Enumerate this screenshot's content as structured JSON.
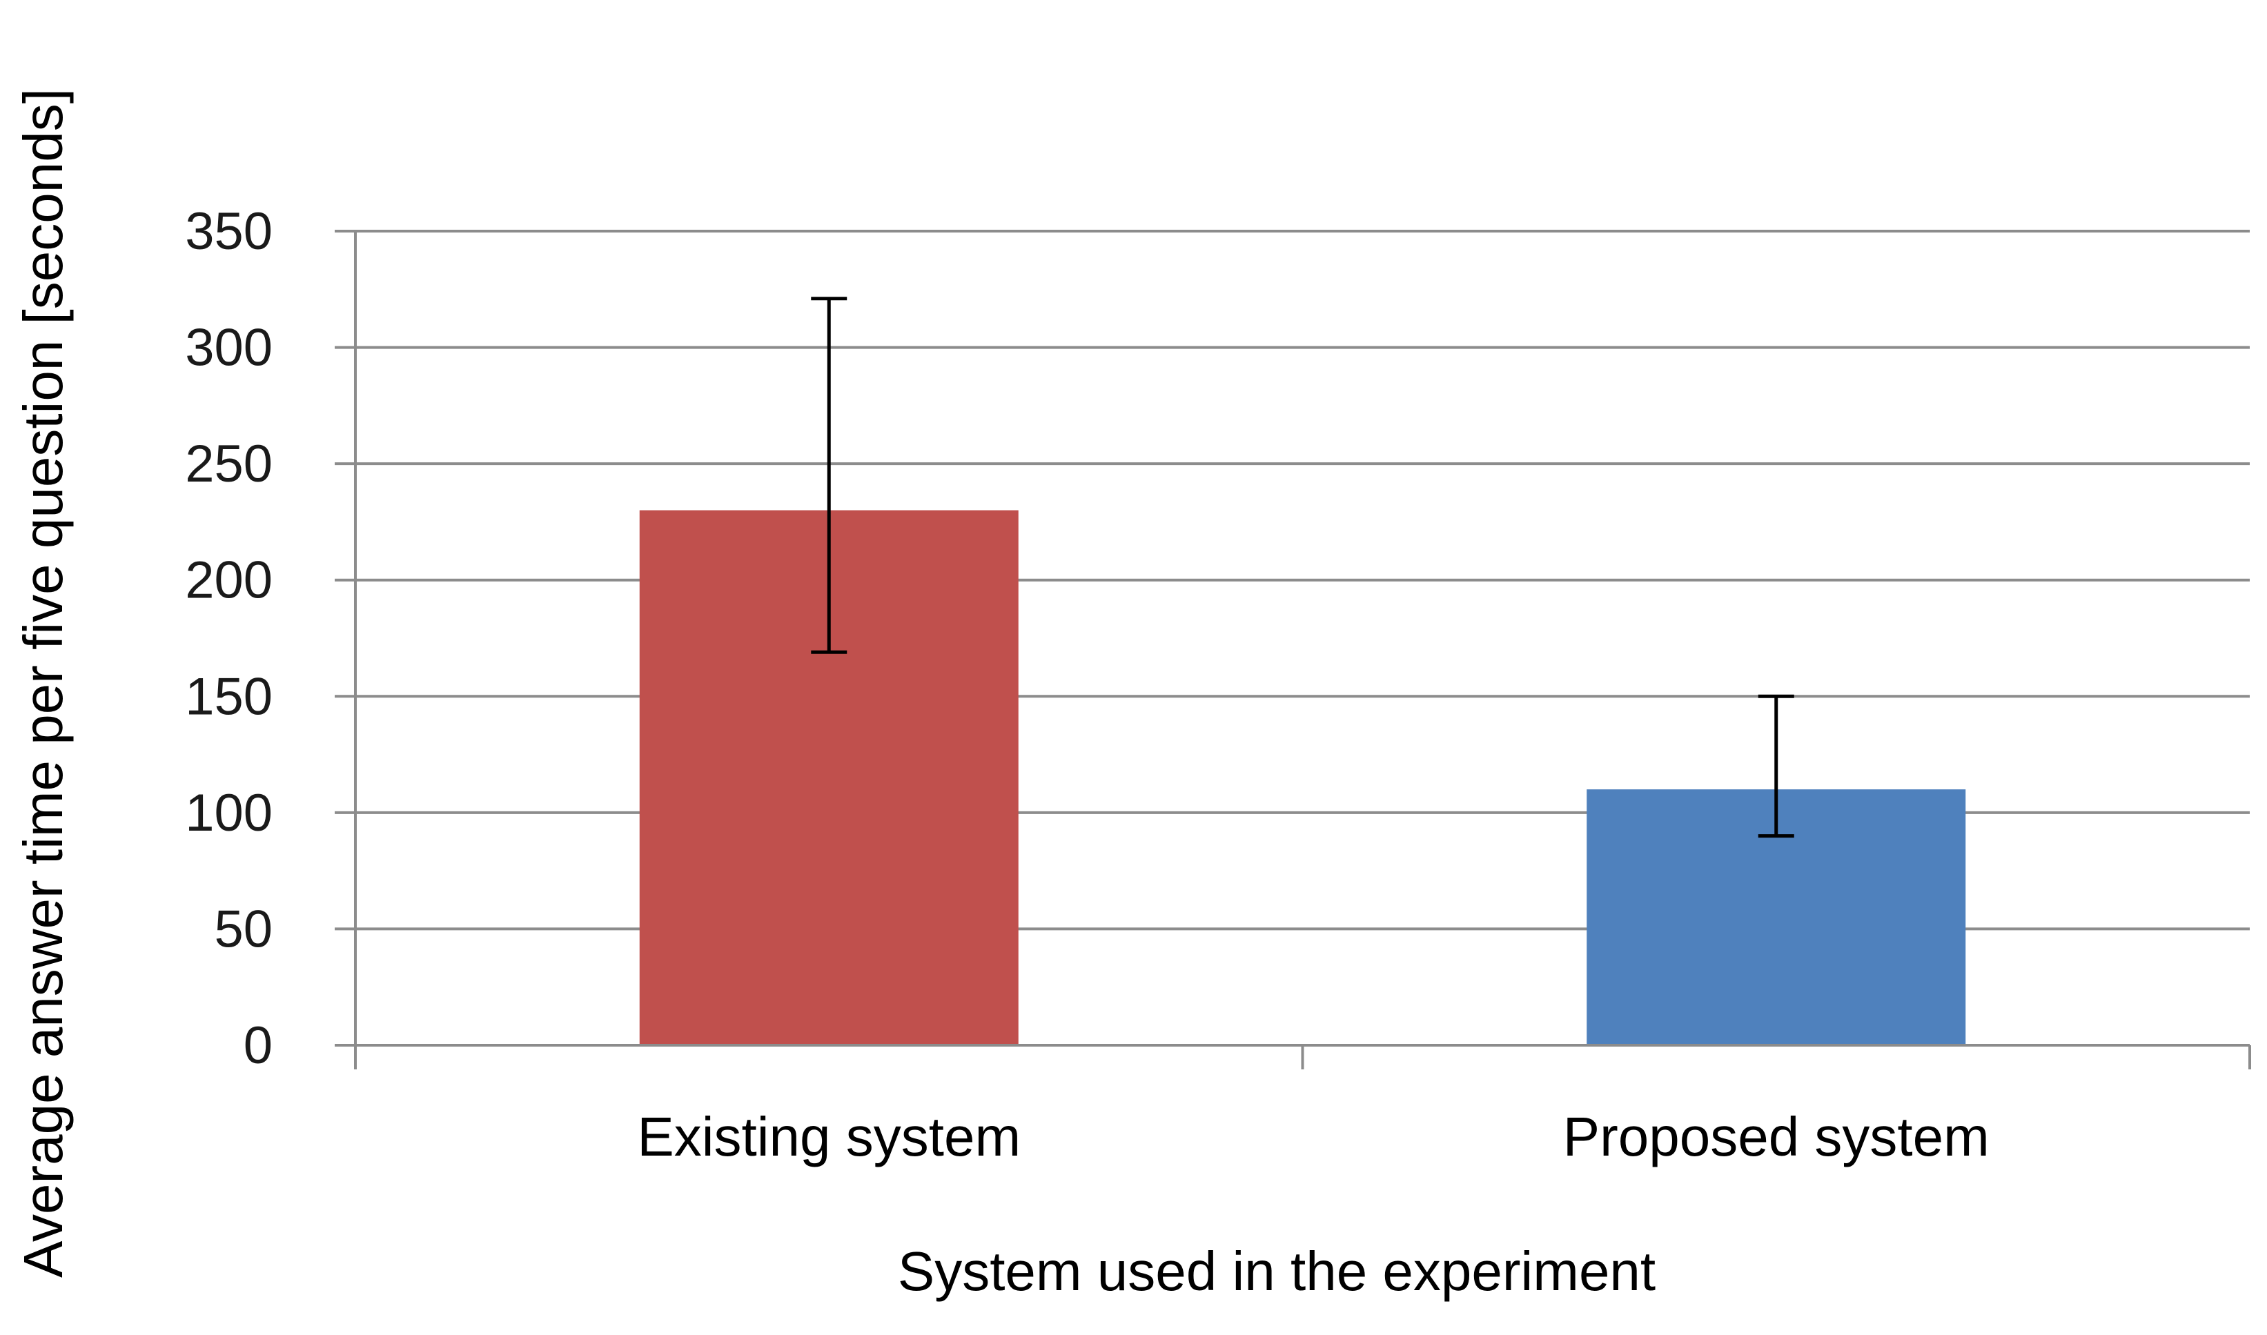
{
  "chart_data": {
    "type": "bar",
    "title": "",
    "xlabel": "System used in the experiment",
    "ylabel": "Average answer time per five question [seconds]",
    "categories": [
      "Existing system",
      "Proposed system"
    ],
    "values": [
      230,
      110
    ],
    "error_low": [
      169,
      90
    ],
    "error_high": [
      321,
      150
    ],
    "colors": [
      "#c0504d",
      "#4f81bd"
    ],
    "ylim": [
      0,
      350
    ],
    "yticks": [
      0,
      50,
      100,
      150,
      200,
      250,
      300,
      350
    ],
    "grid": true,
    "legend": "none"
  }
}
